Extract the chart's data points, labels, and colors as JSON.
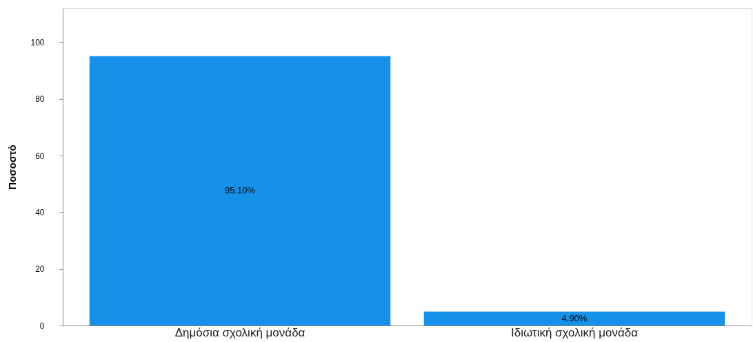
{
  "chart_data": {
    "type": "bar",
    "ylabel": "Ποσοστό",
    "categories": [
      "Δημόσια σχολική μονάδα",
      "Ιδιωτική σχολική μονάδα"
    ],
    "values": [
      95.1,
      4.9
    ],
    "value_labels": [
      "95.10%",
      "4.90%"
    ],
    "color": "#1591ea",
    "ylim": [
      0,
      112
    ],
    "yticks": [
      0,
      20,
      40,
      60,
      80,
      100
    ],
    "grid": false,
    "legend": false
  }
}
